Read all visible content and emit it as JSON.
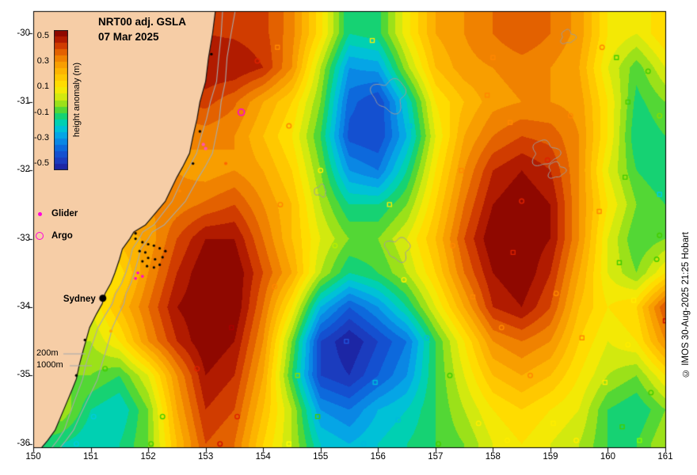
{
  "header": {
    "title_line1": "NRT00 adj. GSLA",
    "title_line2": "07 Mar 2025"
  },
  "colorbar": {
    "label": "height anomaly (m)",
    "tick_labels": [
      "0.5",
      "0.3",
      "0.1",
      "-0.1",
      "-0.3",
      "-0.5"
    ],
    "tick_values": [
      0.5,
      0.3,
      0.1,
      -0.1,
      -0.3,
      -0.5
    ],
    "vmin": -0.55,
    "vmax": 0.55
  },
  "legend": {
    "glider_label": "Glider",
    "argo_label": "Argo",
    "marker_color": "#ff00dd"
  },
  "annotations": {
    "sydney": {
      "label": "Sydney",
      "lon": 151.21,
      "lat": -33.87
    },
    "depth_labels": [
      {
        "label": "200m"
      },
      {
        "label": "1000m"
      }
    ]
  },
  "footer": {
    "copyright": "© IMOS 30-Aug-2025 21:25 Hobart"
  },
  "axes": {
    "x_tick_labels": [
      "150",
      "151",
      "152",
      "153",
      "154",
      "155",
      "156",
      "157",
      "158",
      "159",
      "160",
      "161"
    ],
    "x_tick_values": [
      150,
      151,
      152,
      153,
      154,
      155,
      156,
      157,
      158,
      159,
      160,
      161
    ],
    "y_tick_labels": [
      "-30",
      "-31",
      "-32",
      "-33",
      "-34",
      "-35",
      "-36"
    ],
    "y_tick_values": [
      -30,
      -31,
      -32,
      -33,
      -34,
      -35,
      -36
    ]
  },
  "chart_data": {
    "type": "heatmap",
    "title": "NRT00 adj. GSLA 07 Mar 2025",
    "zlabel": "height anomaly (m)",
    "zlim": [
      -0.5,
      0.5
    ],
    "level_step": 0.05,
    "x": [
      150,
      150.5,
      151,
      151.5,
      152,
      152.5,
      153,
      153.5,
      154,
      154.5,
      155,
      155.5,
      156,
      156.5,
      157,
      157.5,
      158,
      158.5,
      159,
      159.5,
      160,
      160.5,
      161
    ],
    "y": [
      -30,
      -30.5,
      -31,
      -31.5,
      -32,
      -32.5,
      -33,
      -33.5,
      -34,
      -34.5,
      -35,
      -35.5,
      -36
    ],
    "values": [
      [
        0.45,
        0.45,
        0.45,
        0.45,
        0.45,
        0.45,
        0.45,
        0.44,
        0.42,
        0.32,
        0.12,
        -0.15,
        -0.12,
        0.08,
        0.25,
        0.3,
        0.35,
        0.4,
        0.35,
        0.28,
        0.1,
        0.05,
        0.15
      ],
      [
        0.48,
        0.48,
        0.48,
        0.48,
        0.48,
        0.48,
        0.5,
        0.5,
        0.45,
        0.3,
        0.0,
        -0.3,
        -0.28,
        -0.02,
        0.2,
        0.28,
        0.3,
        0.32,
        0.3,
        0.25,
        0.05,
        -0.08,
        0.05
      ],
      [
        0.4,
        0.4,
        0.4,
        0.4,
        0.4,
        0.4,
        0.42,
        0.36,
        0.25,
        0.15,
        -0.05,
        -0.38,
        -0.45,
        -0.2,
        0.1,
        0.2,
        0.28,
        0.3,
        0.3,
        0.28,
        0.1,
        -0.12,
        -0.05
      ],
      [
        0.3,
        0.3,
        0.3,
        0.3,
        0.3,
        0.3,
        0.32,
        0.3,
        0.2,
        0.1,
        -0.1,
        -0.42,
        -0.45,
        -0.25,
        0.05,
        0.25,
        0.35,
        0.4,
        0.38,
        0.3,
        0.1,
        -0.15,
        -0.1
      ],
      [
        0.28,
        0.28,
        0.28,
        0.28,
        0.28,
        0.3,
        0.27,
        0.3,
        0.25,
        0.15,
        -0.05,
        -0.3,
        -0.35,
        -0.15,
        0.1,
        0.3,
        0.45,
        0.5,
        0.45,
        0.3,
        0.05,
        -0.1,
        -0.15
      ],
      [
        0.3,
        0.3,
        0.3,
        0.3,
        0.3,
        0.32,
        0.36,
        0.4,
        0.3,
        0.2,
        0.0,
        -0.15,
        -0.15,
        -0.05,
        0.15,
        0.35,
        0.5,
        0.55,
        0.5,
        0.3,
        0.1,
        -0.05,
        -0.1
      ],
      [
        0.2,
        0.2,
        0.2,
        0.22,
        0.26,
        0.4,
        0.5,
        0.5,
        0.35,
        0.2,
        0.05,
        -0.05,
        -0.05,
        0.05,
        0.2,
        0.4,
        0.55,
        0.55,
        0.5,
        0.3,
        0.05,
        -0.1,
        -0.05
      ],
      [
        0.1,
        0.1,
        0.1,
        0.12,
        0.3,
        0.45,
        0.55,
        0.55,
        0.4,
        0.25,
        0.0,
        -0.15,
        -0.1,
        0.0,
        0.15,
        0.35,
        0.5,
        0.55,
        0.45,
        0.25,
        0.05,
        -0.05,
        0.1
      ],
      [
        0.05,
        0.05,
        0.05,
        0.2,
        0.35,
        0.5,
        0.55,
        0.55,
        0.35,
        0.1,
        -0.25,
        -0.4,
        -0.3,
        -0.15,
        0.05,
        0.25,
        0.45,
        0.5,
        0.4,
        0.2,
        0.1,
        0.15,
        0.4
      ],
      [
        0.0,
        0.0,
        0.0,
        0.1,
        0.3,
        0.45,
        0.55,
        0.5,
        0.3,
        -0.05,
        -0.45,
        -0.55,
        -0.45,
        -0.35,
        -0.1,
        0.1,
        0.3,
        0.35,
        0.3,
        0.15,
        0.05,
        0.1,
        0.3
      ],
      [
        -0.05,
        -0.05,
        -0.05,
        -0.1,
        0.05,
        0.3,
        0.5,
        0.45,
        0.25,
        -0.1,
        -0.45,
        -0.5,
        -0.4,
        -0.3,
        -0.1,
        0.05,
        0.2,
        0.25,
        0.2,
        0.1,
        0.0,
        -0.05,
        0.1
      ],
      [
        0.0,
        0.0,
        -0.15,
        -0.2,
        -0.05,
        0.25,
        0.45,
        0.4,
        0.2,
        0.0,
        -0.3,
        -0.35,
        -0.25,
        -0.2,
        -0.1,
        0.0,
        0.1,
        0.15,
        0.1,
        0.05,
        -0.1,
        -0.15,
        -0.05
      ],
      [
        -0.1,
        -0.15,
        -0.2,
        -0.15,
        -0.05,
        0.2,
        0.4,
        0.35,
        0.15,
        0.0,
        -0.2,
        -0.25,
        -0.2,
        -0.15,
        -0.1,
        -0.05,
        0.05,
        0.1,
        0.05,
        0.0,
        -0.1,
        -0.1,
        0.0
      ]
    ],
    "palette": [
      [
        -0.55,
        "#191996"
      ],
      [
        -0.5,
        "#1e32b4"
      ],
      [
        -0.45,
        "#1946c8"
      ],
      [
        -0.4,
        "#0f5ad7"
      ],
      [
        -0.35,
        "#0a78e1"
      ],
      [
        -0.3,
        "#0a96e6"
      ],
      [
        -0.25,
        "#00b4e6"
      ],
      [
        -0.2,
        "#00cdc8"
      ],
      [
        -0.15,
        "#00d29b"
      ],
      [
        -0.1,
        "#2dd24b"
      ],
      [
        -0.05,
        "#78dc1e"
      ],
      [
        0,
        "#bee614"
      ],
      [
        0.05,
        "#e6eb0a"
      ],
      [
        0.1,
        "#ffe600"
      ],
      [
        0.15,
        "#ffd200"
      ],
      [
        0.2,
        "#ffbe00"
      ],
      [
        0.25,
        "#faaa00"
      ],
      [
        0.3,
        "#f59100"
      ],
      [
        0.35,
        "#eb7300"
      ],
      [
        0.4,
        "#dc5000"
      ],
      [
        0.45,
        "#c32800"
      ],
      [
        0.5,
        "#a00f00"
      ],
      [
        0.55,
        "#7d0000"
      ]
    ],
    "land_color": "#f6cda6",
    "coastline": [
      [
        153.18,
        -29.6
      ],
      [
        153.12,
        -30.0
      ],
      [
        153.05,
        -30.35
      ],
      [
        153.0,
        -30.7
      ],
      [
        152.9,
        -31.0
      ],
      [
        152.85,
        -31.25
      ],
      [
        152.78,
        -31.5
      ],
      [
        152.72,
        -31.75
      ],
      [
        152.6,
        -31.95
      ],
      [
        152.5,
        -32.1
      ],
      [
        152.3,
        -32.45
      ],
      [
        152.15,
        -32.6
      ],
      [
        151.95,
        -32.8
      ],
      [
        151.75,
        -32.9
      ],
      [
        151.68,
        -33.0
      ],
      [
        151.55,
        -33.15
      ],
      [
        151.5,
        -33.3
      ],
      [
        151.42,
        -33.5
      ],
      [
        151.35,
        -33.65
      ],
      [
        151.25,
        -33.8
      ],
      [
        151.2,
        -33.95
      ],
      [
        151.1,
        -34.1
      ],
      [
        150.98,
        -34.3
      ],
      [
        150.93,
        -34.45
      ],
      [
        150.88,
        -34.6
      ],
      [
        150.8,
        -34.85
      ],
      [
        150.75,
        -35.05
      ],
      [
        150.68,
        -35.2
      ],
      [
        150.58,
        -35.4
      ],
      [
        150.48,
        -35.6
      ],
      [
        150.38,
        -35.8
      ],
      [
        150.25,
        -35.95
      ],
      [
        150.1,
        -36.1
      ]
    ],
    "bathymetry": {
      "labels": [
        "200m",
        "1000m"
      ],
      "offsets": [
        0.15,
        0.36
      ],
      "line_color": "#a9a9a9"
    },
    "eddy_outlines": [
      {
        "lon": 156.2,
        "lat": -30.9,
        "r": 0.28
      },
      {
        "lon": 158.9,
        "lat": -31.75,
        "r": 0.22
      },
      {
        "lon": 159.1,
        "lat": -32.0,
        "r": 0.14
      },
      {
        "lon": 156.35,
        "lat": -33.15,
        "r": 0.2
      },
      {
        "lon": 159.3,
        "lat": -30.05,
        "r": 0.12
      },
      {
        "lon": 155.0,
        "lat": -32.3,
        "r": 0.1
      }
    ],
    "markers": [
      [
        153.9,
        -30.4,
        "#dd2200",
        "c"
      ],
      [
        154.25,
        -30.2,
        "#ff8800",
        "s"
      ],
      [
        155.9,
        -30.1,
        "#ffee00",
        "s"
      ],
      [
        158.0,
        -30.35,
        "#ff8800",
        "s"
      ],
      [
        159.9,
        -30.2,
        "#ff8800",
        "c"
      ],
      [
        160.15,
        -30.35,
        "#44cc00",
        "s"
      ],
      [
        160.7,
        -30.55,
        "#44cc00",
        "c"
      ],
      [
        157.9,
        -30.9,
        "#ff8800",
        "s"
      ],
      [
        160.35,
        -31.0,
        "#44cc00",
        "s"
      ],
      [
        160.9,
        -31.2,
        "#88dd00",
        "c"
      ],
      [
        154.45,
        -31.35,
        "#ff8800",
        "c"
      ],
      [
        156.55,
        -31.35,
        "#00bbdd",
        "s"
      ],
      [
        158.3,
        -31.3,
        "#ff8800",
        "s"
      ],
      [
        159.35,
        -31.2,
        "#ff8800",
        "c"
      ],
      [
        153.35,
        -31.9,
        "#ff6600",
        "d"
      ],
      [
        155.0,
        -32.0,
        "#ffee00",
        "c"
      ],
      [
        157.45,
        -32.0,
        "#ff8800",
        "s"
      ],
      [
        158.95,
        -31.85,
        "#dd2200",
        "c"
      ],
      [
        160.3,
        -32.1,
        "#44cc00",
        "s"
      ],
      [
        160.9,
        -32.35,
        "#00ccdd",
        "s"
      ],
      [
        152.55,
        -32.3,
        "#ff8800",
        "d"
      ],
      [
        154.3,
        -32.5,
        "#ff8800",
        "c"
      ],
      [
        156.2,
        -32.5,
        "#ffee00",
        "s"
      ],
      [
        158.5,
        -32.45,
        "#dd2200",
        "c"
      ],
      [
        159.85,
        -32.6,
        "#ff8800",
        "s"
      ],
      [
        160.9,
        -32.95,
        "#44cc00",
        "c"
      ],
      [
        155.25,
        -33.1,
        "#bbee00",
        "c"
      ],
      [
        157.3,
        -33.1,
        "#ff8800",
        "c"
      ],
      [
        158.35,
        -33.2,
        "#dd2200",
        "s"
      ],
      [
        160.2,
        -33.35,
        "#44cc00",
        "s"
      ],
      [
        160.85,
        -33.3,
        "#44cc00",
        "c"
      ],
      [
        154.2,
        -33.7,
        "#ff8800",
        "c"
      ],
      [
        156.45,
        -33.6,
        "#ffee00",
        "c"
      ],
      [
        157.65,
        -33.85,
        "#ff8800",
        "s"
      ],
      [
        159.1,
        -33.8,
        "#ff8800",
        "c"
      ],
      [
        160.45,
        -33.9,
        "#ffee00",
        "s"
      ],
      [
        161.0,
        -34.2,
        "#cc1100",
        "s"
      ],
      [
        153.45,
        -34.3,
        "#aa0000",
        "s"
      ],
      [
        155.45,
        -34.5,
        "#2255dd",
        "s"
      ],
      [
        156.85,
        -34.45,
        "#00bbdd",
        "c"
      ],
      [
        158.15,
        -34.3,
        "#ff8800",
        "c"
      ],
      [
        159.55,
        -34.45,
        "#ff8800",
        "s"
      ],
      [
        160.35,
        -34.55,
        "#ffee00",
        "c"
      ],
      [
        151.25,
        -34.9,
        "#44cc00",
        "c"
      ],
      [
        152.85,
        -34.9,
        "#dd2200",
        "c"
      ],
      [
        154.6,
        -35.0,
        "#88dd00",
        "s"
      ],
      [
        155.95,
        -35.1,
        "#00bbdd",
        "s"
      ],
      [
        157.25,
        -35.0,
        "#44cc00",
        "c"
      ],
      [
        158.65,
        -35.0,
        "#ff8800",
        "c"
      ],
      [
        159.95,
        -35.1,
        "#ffee00",
        "s"
      ],
      [
        160.75,
        -35.25,
        "#44cc00",
        "c"
      ],
      [
        151.05,
        -35.6,
        "#00ccdd",
        "c"
      ],
      [
        152.25,
        -35.6,
        "#44cc00",
        "c"
      ],
      [
        153.55,
        -35.6,
        "#dd2200",
        "c"
      ],
      [
        154.95,
        -35.6,
        "#44cc00",
        "s"
      ],
      [
        156.35,
        -35.65,
        "#00bbdd",
        "c"
      ],
      [
        157.75,
        -35.7,
        "#ffee00",
        "c"
      ],
      [
        159.05,
        -35.7,
        "#ffee00",
        "s"
      ],
      [
        160.25,
        -35.75,
        "#44cc00",
        "s"
      ],
      [
        150.75,
        -36.0,
        "#00ccdd",
        "c"
      ],
      [
        152.05,
        -36.0,
        "#44cc00",
        "c"
      ],
      [
        153.25,
        -36.0,
        "#cc1100",
        "c"
      ],
      [
        154.45,
        -36.0,
        "#ffff00",
        "s"
      ],
      [
        155.75,
        -36.0,
        "#00bbdd",
        "c"
      ],
      [
        157.05,
        -36.0,
        "#44cc00",
        "c"
      ],
      [
        158.25,
        -35.95,
        "#ffee00",
        "c"
      ],
      [
        159.45,
        -35.95,
        "#ffee00",
        "c"
      ],
      [
        160.55,
        -35.95,
        "#88ff00",
        "s"
      ],
      [
        151.35,
        -34.35,
        "#ffaa00",
        "d"
      ]
    ],
    "glider_track": [
      [
        151.78,
        -33.0
      ],
      [
        151.9,
        -33.05
      ],
      [
        152.0,
        -33.08
      ],
      [
        152.1,
        -33.1
      ],
      [
        152.2,
        -33.14
      ],
      [
        152.3,
        -33.18
      ],
      [
        152.25,
        -33.27
      ],
      [
        152.12,
        -33.3
      ],
      [
        152.0,
        -33.28
      ],
      [
        151.9,
        -33.33
      ],
      [
        151.98,
        -33.4
      ],
      [
        152.1,
        -33.42
      ],
      [
        152.2,
        -33.38
      ],
      [
        151.85,
        -33.18
      ],
      [
        151.95,
        -33.2
      ]
    ],
    "glider_magenta": [
      [
        151.82,
        -33.5
      ],
      [
        151.9,
        -33.55
      ],
      [
        151.78,
        -33.58
      ]
    ],
    "coastal_dots": {
      "color": "#ff55aa",
      "points": [
        [
          152.96,
          -31.62
        ],
        [
          153.0,
          -31.68
        ]
      ]
    },
    "argo_positions": [
      [
        153.62,
        -31.15
      ]
    ],
    "coast_towns": [
      [
        153.1,
        -30.3
      ],
      [
        152.9,
        -31.43
      ],
      [
        152.78,
        -31.9
      ],
      [
        151.78,
        -32.92
      ],
      [
        150.9,
        -34.48
      ],
      [
        150.75,
        -35.0
      ]
    ]
  }
}
